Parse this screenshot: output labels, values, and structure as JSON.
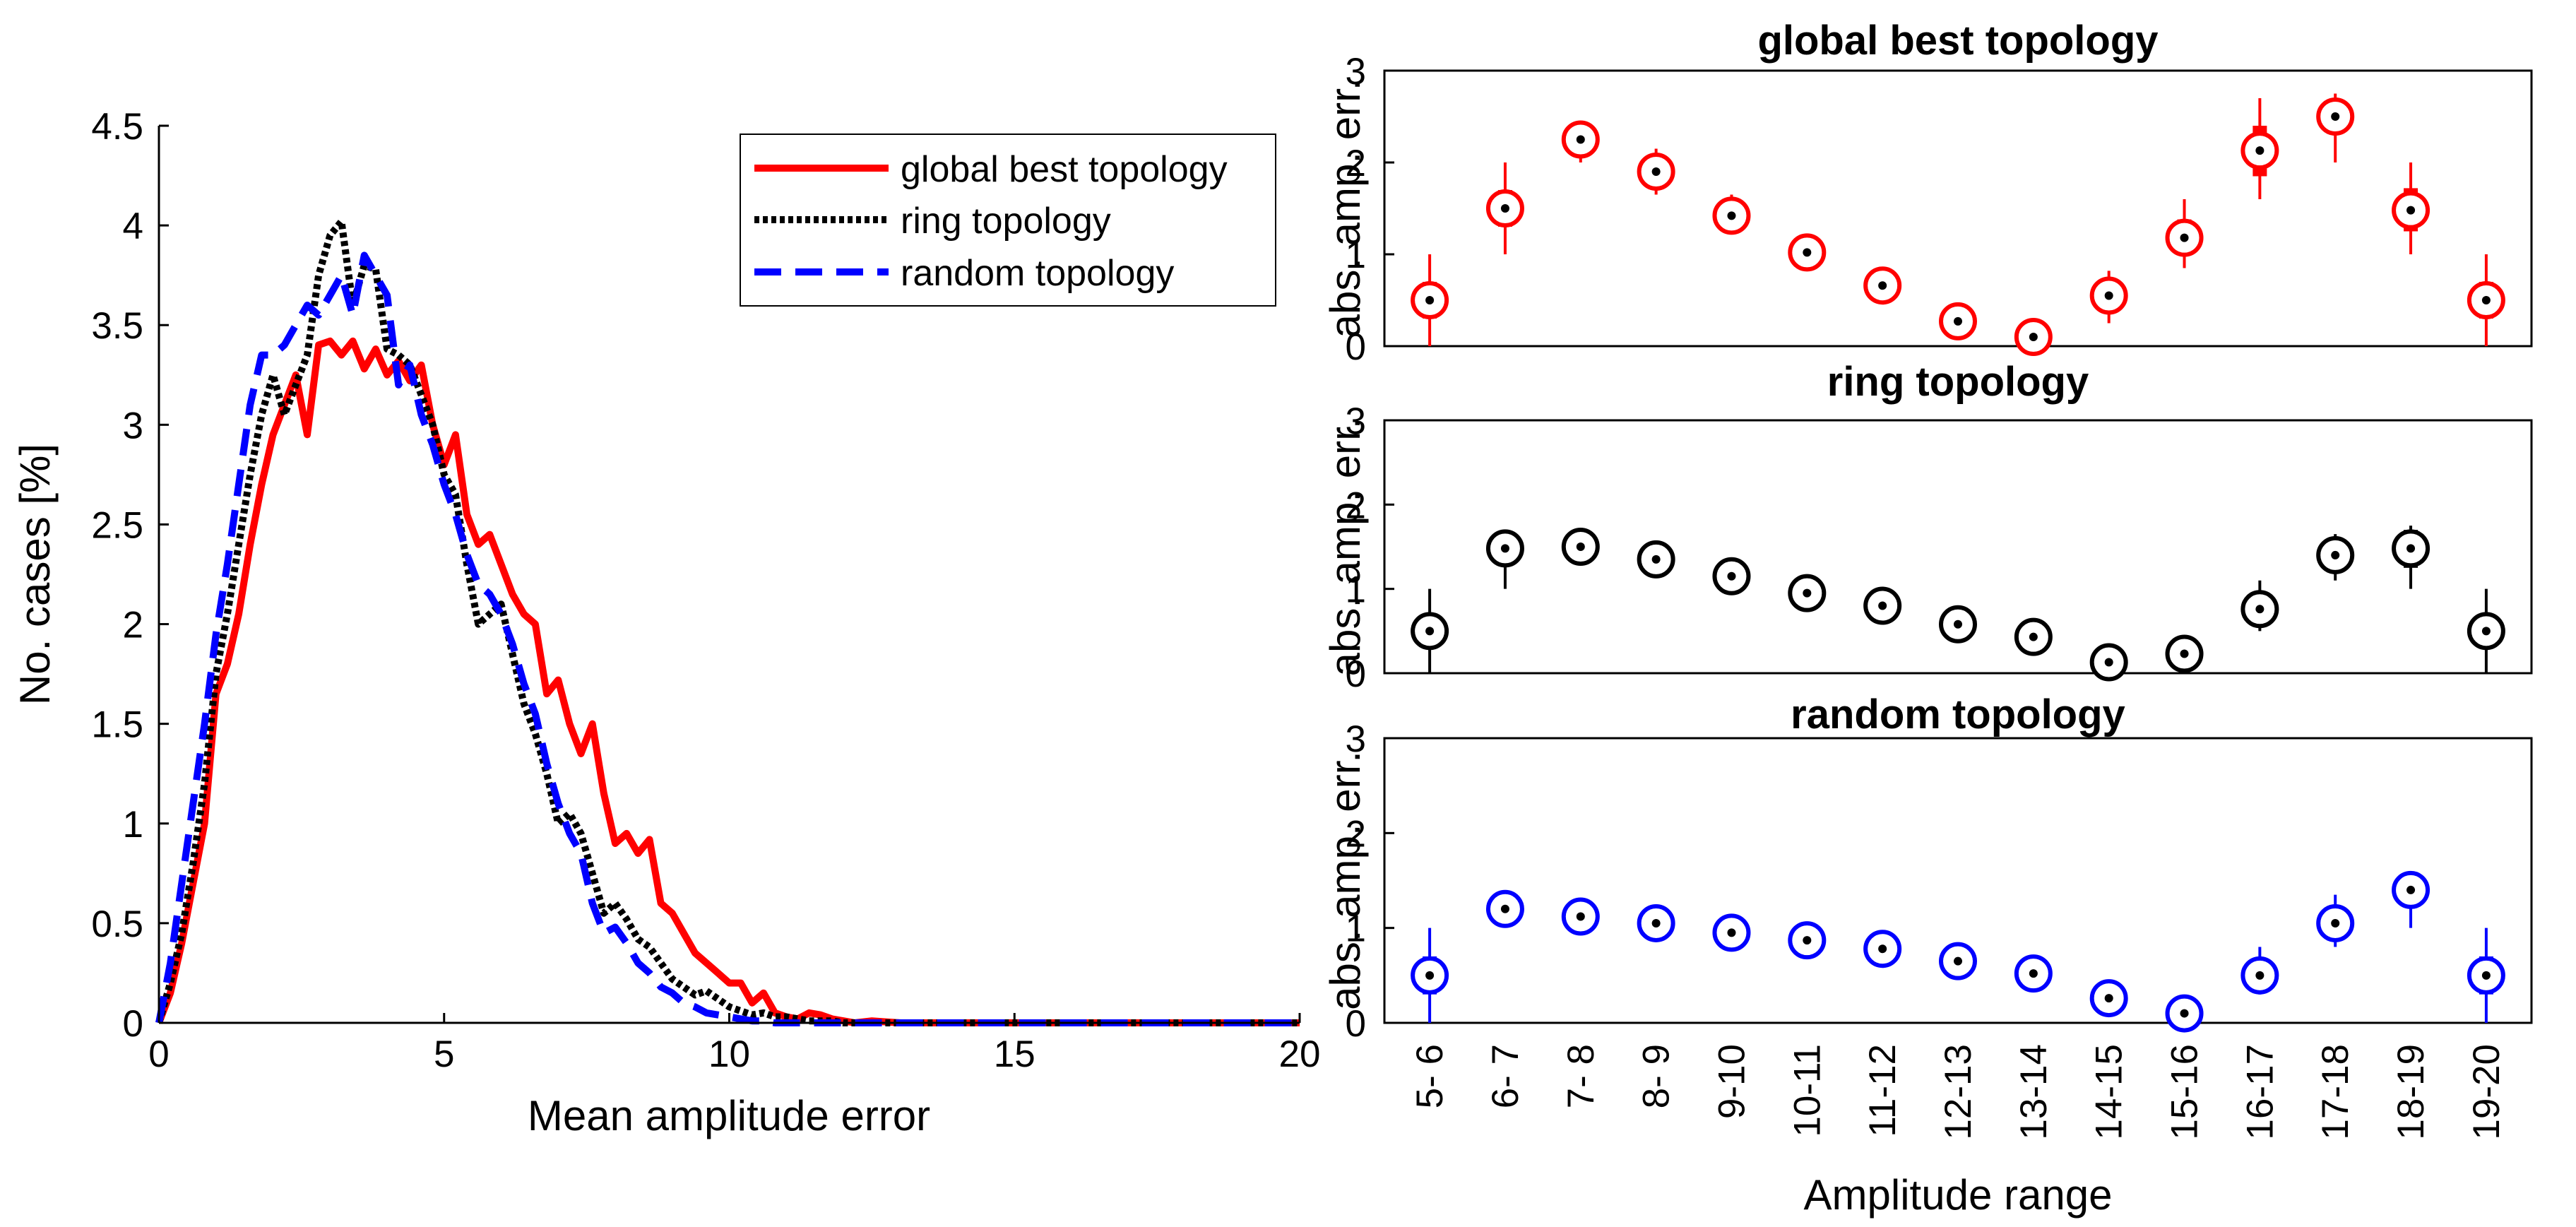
{
  "chart_data": [
    {
      "type": "line",
      "id": "histogram",
      "xlabel": "Mean amplitude error",
      "ylabel": "No. cases [%]",
      "xlim": [
        0,
        20
      ],
      "ylim": [
        0,
        4.5
      ],
      "xticks": [
        0,
        5,
        10,
        15,
        20
      ],
      "yticks": [
        0,
        0.5,
        1,
        1.5,
        2,
        2.5,
        3,
        3.5,
        4,
        4.5
      ],
      "legend_position": "top-right",
      "series": [
        {
          "name": "global best topology",
          "color": "#ff0000",
          "style": "solid",
          "x": [
            0,
            0.2,
            0.4,
            0.6,
            0.8,
            1.0,
            1.2,
            1.4,
            1.6,
            1.8,
            2.0,
            2.2,
            2.4,
            2.6,
            2.8,
            3.0,
            3.2,
            3.4,
            3.6,
            3.8,
            4.0,
            4.2,
            4.4,
            4.6,
            4.8,
            5.0,
            5.2,
            5.4,
            5.6,
            5.8,
            6.0,
            6.2,
            6.4,
            6.6,
            6.8,
            7.0,
            7.2,
            7.4,
            7.6,
            7.8,
            8.0,
            8.2,
            8.4,
            8.6,
            8.8,
            9.0,
            9.2,
            9.4,
            9.6,
            9.8,
            10.0,
            10.2,
            10.4,
            10.6,
            10.8,
            11.0,
            11.2,
            11.4,
            11.6,
            11.8,
            12.0,
            12.2,
            12.5,
            13,
            14,
            15,
            16,
            17,
            18,
            19,
            20
          ],
          "values": [
            0,
            0.15,
            0.4,
            0.7,
            1.0,
            1.65,
            1.8,
            2.05,
            2.4,
            2.7,
            2.95,
            3.1,
            3.25,
            2.95,
            3.4,
            3.42,
            3.35,
            3.42,
            3.28,
            3.38,
            3.25,
            3.32,
            3.22,
            3.3,
            3.0,
            2.8,
            2.95,
            2.55,
            2.4,
            2.45,
            2.3,
            2.15,
            2.05,
            2.0,
            1.65,
            1.72,
            1.5,
            1.35,
            1.5,
            1.15,
            0.9,
            0.95,
            0.85,
            0.92,
            0.6,
            0.55,
            0.45,
            0.35,
            0.3,
            0.25,
            0.2,
            0.2,
            0.1,
            0.15,
            0.05,
            0.03,
            0.02,
            0.05,
            0.04,
            0.02,
            0.01,
            0.0,
            0.01,
            0,
            0,
            0,
            0,
            0,
            0,
            0,
            0
          ]
        },
        {
          "name": "ring topology",
          "color": "#000000",
          "style": "dotted",
          "x": [
            0,
            0.2,
            0.4,
            0.6,
            0.8,
            1.0,
            1.2,
            1.4,
            1.6,
            1.8,
            2.0,
            2.2,
            2.4,
            2.6,
            2.8,
            3.0,
            3.2,
            3.4,
            3.6,
            3.8,
            4.0,
            4.2,
            4.4,
            4.6,
            4.8,
            5.0,
            5.2,
            5.4,
            5.6,
            5.8,
            6.0,
            6.2,
            6.4,
            6.6,
            6.8,
            7.0,
            7.2,
            7.4,
            7.6,
            7.8,
            8.0,
            8.2,
            8.4,
            8.6,
            8.8,
            9.0,
            9.2,
            9.4,
            9.6,
            9.8,
            10.0,
            10.2,
            10.4,
            10.6,
            10.8,
            11.0,
            11.2,
            11.4,
            11.6,
            11.8,
            12.0,
            12.5,
            13,
            14,
            15,
            16,
            17,
            18,
            19,
            20
          ],
          "values": [
            0,
            0.2,
            0.45,
            0.8,
            1.2,
            1.75,
            2.05,
            2.4,
            2.75,
            3.05,
            3.25,
            3.05,
            3.2,
            3.35,
            3.75,
            3.95,
            4.02,
            3.6,
            3.8,
            3.78,
            3.38,
            3.35,
            3.3,
            3.15,
            3.0,
            2.75,
            2.65,
            2.3,
            2.0,
            2.05,
            2.1,
            1.85,
            1.6,
            1.45,
            1.25,
            1.0,
            1.05,
            0.95,
            0.75,
            0.55,
            0.6,
            0.52,
            0.42,
            0.38,
            0.3,
            0.22,
            0.18,
            0.14,
            0.16,
            0.12,
            0.08,
            0.06,
            0.04,
            0.05,
            0.03,
            0.03,
            0.02,
            0.01,
            0.01,
            0.01,
            0.0,
            0,
            0,
            0,
            0,
            0,
            0,
            0,
            0,
            0
          ]
        },
        {
          "name": "random topology",
          "color": "#0000ff",
          "style": "dashed",
          "x": [
            0,
            0.2,
            0.4,
            0.6,
            0.8,
            1.0,
            1.2,
            1.4,
            1.6,
            1.8,
            2.0,
            2.2,
            2.4,
            2.6,
            2.8,
            3.0,
            3.2,
            3.4,
            3.6,
            3.8,
            4.0,
            4.2,
            4.4,
            4.6,
            4.8,
            5.0,
            5.2,
            5.4,
            5.6,
            5.8,
            6.0,
            6.2,
            6.4,
            6.6,
            6.8,
            7.0,
            7.2,
            7.4,
            7.6,
            7.8,
            8.0,
            8.2,
            8.4,
            8.6,
            8.8,
            9.0,
            9.2,
            9.4,
            9.6,
            9.8,
            10.0,
            10.2,
            10.4,
            10.6,
            10.8,
            11.0,
            11.5,
            12,
            13,
            14,
            15,
            16,
            17,
            18,
            19,
            20
          ],
          "values": [
            0,
            0.3,
            0.7,
            1.1,
            1.5,
            1.95,
            2.3,
            2.7,
            3.1,
            3.35,
            3.35,
            3.4,
            3.5,
            3.6,
            3.55,
            3.65,
            3.75,
            3.55,
            3.85,
            3.75,
            3.65,
            3.2,
            3.3,
            3.05,
            2.9,
            2.7,
            2.55,
            2.35,
            2.2,
            2.15,
            2.05,
            1.9,
            1.7,
            1.55,
            1.3,
            1.1,
            0.95,
            0.85,
            0.6,
            0.45,
            0.48,
            0.4,
            0.3,
            0.25,
            0.18,
            0.15,
            0.1,
            0.08,
            0.05,
            0.04,
            0.03,
            0.02,
            0.01,
            0.01,
            0.0,
            0.0,
            0,
            0,
            0,
            0,
            0,
            0,
            0,
            0,
            0,
            0
          ]
        }
      ]
    },
    {
      "type": "box",
      "id": "boxplots",
      "xlabel": "Amplitude range",
      "ylabel": "abs. amp. err.",
      "categories": [
        "5- 6",
        "6- 7",
        "7- 8",
        "8- 9",
        "9-10",
        "10-11",
        "11-12",
        "12-13",
        "13-14",
        "14-15",
        "15-16",
        "16-17",
        "17-18",
        "18-19",
        "19-20"
      ],
      "ylim": [
        0,
        3
      ],
      "yticks": [
        0,
        1,
        2,
        3
      ],
      "panels": [
        {
          "title": "global best topology",
          "color": "#ff0000",
          "median": [
            0.5,
            1.5,
            2.25,
            1.9,
            1.42,
            1.02,
            0.66,
            0.27,
            0.1,
            0.55,
            1.18,
            2.13,
            2.5,
            1.48,
            0.5
          ],
          "q1": [
            0.3,
            1.3,
            2.2,
            1.85,
            1.37,
            0.97,
            0.61,
            0.23,
            0.07,
            0.45,
            1.0,
            1.85,
            2.35,
            1.25,
            0.3
          ],
          "q3": [
            0.7,
            1.7,
            2.3,
            1.95,
            1.47,
            1.07,
            0.71,
            0.31,
            0.13,
            0.65,
            1.38,
            2.4,
            2.65,
            1.72,
            0.7
          ],
          "whisker_low": [
            0.0,
            1.0,
            2.0,
            1.65,
            1.22,
            0.87,
            0.46,
            0.15,
            0.0,
            0.25,
            0.85,
            1.6,
            2.0,
            1.0,
            0.0
          ],
          "whisker_high": [
            1.0,
            2.0,
            2.35,
            2.15,
            1.65,
            1.22,
            0.86,
            0.38,
            0.22,
            0.82,
            1.6,
            2.7,
            2.75,
            2.0,
            1.0
          ]
        },
        {
          "title": "ring topology",
          "color": "#000000",
          "median": [
            0.5,
            1.48,
            1.5,
            1.35,
            1.15,
            0.95,
            0.8,
            0.58,
            0.43,
            0.13,
            0.23,
            0.76,
            1.4,
            1.48,
            0.5
          ],
          "q1": [
            0.3,
            1.3,
            1.45,
            1.3,
            1.1,
            0.9,
            0.75,
            0.54,
            0.39,
            0.1,
            0.18,
            0.65,
            1.3,
            1.25,
            0.3
          ],
          "q3": [
            0.7,
            1.55,
            1.55,
            1.4,
            1.2,
            1.0,
            0.85,
            0.62,
            0.47,
            0.16,
            0.28,
            0.85,
            1.5,
            1.7,
            0.7
          ],
          "whisker_low": [
            0.0,
            1.0,
            1.35,
            1.25,
            1.05,
            0.85,
            0.7,
            0.5,
            0.33,
            0.05,
            0.05,
            0.5,
            1.1,
            1.0,
            0.0
          ],
          "whisker_high": [
            1.0,
            1.65,
            1.65,
            1.45,
            1.25,
            1.05,
            0.9,
            0.66,
            0.55,
            0.2,
            0.45,
            1.1,
            1.65,
            1.75,
            1.0
          ]
        },
        {
          "title": "random topology",
          "color": "#0000ff",
          "median": [
            0.5,
            1.2,
            1.12,
            1.05,
            0.95,
            0.87,
            0.78,
            0.65,
            0.52,
            0.26,
            0.1,
            0.5,
            1.05,
            1.4,
            0.5
          ],
          "q1": [
            0.3,
            1.15,
            1.07,
            1.0,
            0.9,
            0.82,
            0.73,
            0.6,
            0.48,
            0.22,
            0.06,
            0.4,
            0.95,
            1.3,
            0.3
          ],
          "q3": [
            0.7,
            1.25,
            1.17,
            1.1,
            1.0,
            0.92,
            0.83,
            0.7,
            0.56,
            0.3,
            0.14,
            0.6,
            1.15,
            1.5,
            0.7
          ],
          "whisker_low": [
            0.0,
            1.1,
            1.02,
            0.96,
            0.86,
            0.78,
            0.7,
            0.57,
            0.45,
            0.18,
            0.02,
            0.3,
            0.8,
            1.0,
            0.0
          ],
          "whisker_high": [
            1.0,
            1.3,
            1.2,
            1.14,
            1.04,
            0.96,
            0.87,
            0.73,
            0.6,
            0.34,
            0.17,
            0.8,
            1.35,
            1.6,
            1.0
          ]
        }
      ]
    }
  ]
}
